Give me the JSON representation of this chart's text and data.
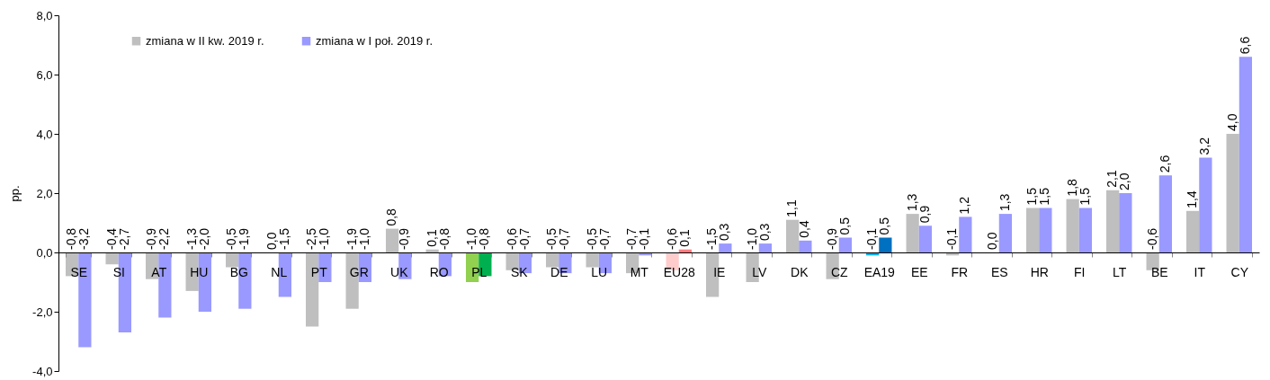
{
  "chart_data": {
    "type": "bar",
    "ylabel": "pp.",
    "categories": [
      "SE",
      "SI",
      "AT",
      "HU",
      "BG",
      "NL",
      "PT",
      "GR",
      "UK",
      "RO",
      "PL",
      "SK",
      "DE",
      "LU",
      "MT",
      "EU28",
      "IE",
      "LV",
      "DK",
      "CZ",
      "EA19",
      "EE",
      "FR",
      "ES",
      "HR",
      "FI",
      "LT",
      "BE",
      "IT",
      "CY"
    ],
    "series": [
      {
        "name": "zmiana w II kw. 2019 r.",
        "color": "#bfbfbf",
        "colors": [
          null,
          null,
          null,
          null,
          null,
          null,
          null,
          null,
          null,
          null,
          "#92d050",
          null,
          null,
          null,
          null,
          "#ffcccc",
          null,
          null,
          null,
          null,
          "#00b0f0",
          null,
          null,
          null,
          null,
          null,
          null,
          null,
          null,
          null
        ],
        "values": [
          -0.8,
          -0.4,
          -0.9,
          -1.3,
          -0.5,
          0.0,
          -2.5,
          -1.9,
          0.8,
          0.1,
          -1.0,
          -0.6,
          -0.5,
          -0.5,
          -0.7,
          -0.6,
          -1.5,
          -1.0,
          1.1,
          -0.9,
          -0.1,
          1.3,
          -0.1,
          0.0,
          1.5,
          1.8,
          2.1,
          -0.6,
          1.4,
          4.0
        ],
        "value_labels": [
          "-0,8",
          "-0,4",
          "-0,9",
          "-1,3",
          "-0,5",
          "0,0",
          "-2,5",
          "-1,9",
          "0,8",
          "0,1",
          "-1,0",
          "-0,6",
          "-0,5",
          "-0,5",
          "-0,7",
          "-0,6",
          "-1,5",
          "-1,0",
          "1,1",
          "-0,9",
          "-0,1",
          "1,3",
          "-0,1",
          "0,0",
          "1,5",
          "1,8",
          "2,1",
          "-0,6",
          "1,4",
          "4,0"
        ]
      },
      {
        "name": "zmiana w I poł. 2019 r.",
        "color": "#9999ff",
        "colors": [
          null,
          null,
          null,
          null,
          null,
          null,
          null,
          null,
          null,
          null,
          "#00b050",
          null,
          null,
          null,
          null,
          "#ff7c80",
          null,
          null,
          null,
          null,
          "#0070c0",
          null,
          null,
          null,
          null,
          null,
          null,
          null,
          null,
          null
        ],
        "values": [
          -3.2,
          -2.7,
          -2.2,
          -2.0,
          -1.9,
          -1.5,
          -1.0,
          -1.0,
          -0.9,
          -0.8,
          -0.8,
          -0.7,
          -0.7,
          -0.7,
          -0.1,
          0.1,
          0.3,
          0.3,
          0.4,
          0.5,
          0.5,
          0.9,
          1.2,
          1.3,
          1.5,
          1.5,
          2.0,
          2.6,
          3.2,
          6.6
        ],
        "value_labels": [
          "-3,2",
          "-2,7",
          "-2,2",
          "-2,0",
          "-1,9",
          "-1,5",
          "-1,0",
          "-1,0",
          "-0,9",
          "-0,8",
          "-0,8",
          "-0,7",
          "-0,7",
          "-0,7",
          "-0,1",
          "0,1",
          "0,3",
          "0,3",
          "0,4",
          "0,5",
          "0,5",
          "0,9",
          "1,2",
          "1,3",
          "1,5",
          "1,5",
          "2,0",
          "2,6",
          "3,2",
          "6,6"
        ]
      }
    ],
    "ylim": [
      -4,
      8
    ],
    "yticks": [
      {
        "value": -4,
        "label": "-4,0"
      },
      {
        "value": -2,
        "label": "-2,0"
      },
      {
        "value": 0,
        "label": "0,0"
      },
      {
        "value": 2,
        "label": "2,0"
      },
      {
        "value": 4,
        "label": "4,0"
      },
      {
        "value": 6,
        "label": "6,0"
      },
      {
        "value": 8,
        "label": "8,0"
      }
    ],
    "legend": "top left",
    "grid": false
  }
}
